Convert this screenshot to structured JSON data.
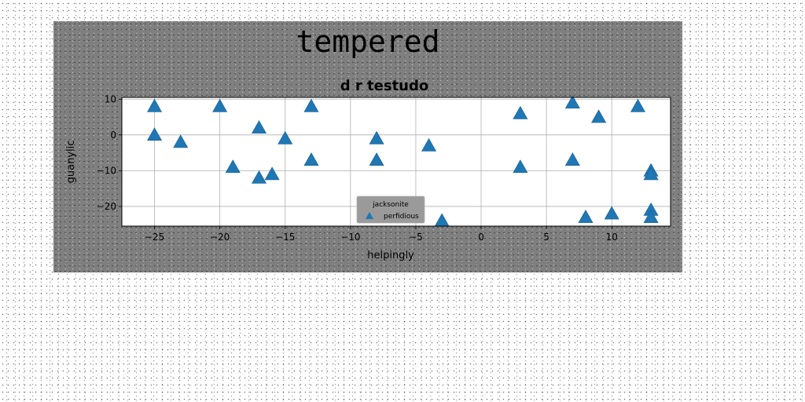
{
  "figure": {
    "suptitle": "tempered"
  },
  "chart_data": {
    "type": "scatter",
    "title": "d r testudo",
    "xlabel": "helpingly",
    "ylabel": "guanylic",
    "xlim": [
      -27.5,
      14.5
    ],
    "ylim": [
      -25.5,
      10.5
    ],
    "xticks": [
      -25,
      -20,
      -15,
      -10,
      -5,
      0,
      5,
      10
    ],
    "yticks": [
      -20,
      -10,
      0,
      10
    ],
    "grid": true,
    "legend": {
      "title": "jacksonite",
      "placement": "lower-center"
    },
    "series": [
      {
        "name": "perfidious",
        "marker": "triangle-up",
        "color": "#1f77b4",
        "points": [
          [
            -25,
            8
          ],
          [
            -25,
            0
          ],
          [
            -23,
            -2
          ],
          [
            -20,
            8
          ],
          [
            -19,
            -9
          ],
          [
            -17,
            2
          ],
          [
            -17,
            -12
          ],
          [
            -16,
            -11
          ],
          [
            -15,
            -1
          ],
          [
            -13,
            8
          ],
          [
            -13,
            -7
          ],
          [
            -8,
            -1
          ],
          [
            -8,
            -7
          ],
          [
            -4,
            -3
          ],
          [
            -3,
            -24
          ],
          [
            3,
            6
          ],
          [
            3,
            -9
          ],
          [
            7,
            9
          ],
          [
            7,
            -7
          ],
          [
            8,
            -23
          ],
          [
            9,
            5
          ],
          [
            10,
            -22
          ],
          [
            12,
            8
          ],
          [
            13,
            -10
          ],
          [
            13,
            -11
          ],
          [
            13,
            -21
          ],
          [
            13,
            -23
          ]
        ]
      }
    ]
  }
}
